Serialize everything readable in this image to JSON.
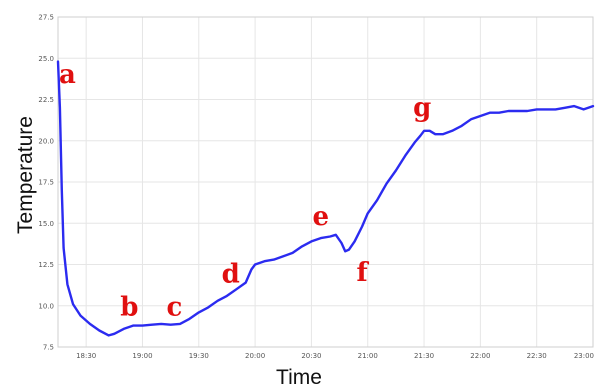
{
  "chart_data": {
    "type": "line",
    "title": "",
    "xlabel": "Time",
    "ylabel": "Temperature",
    "xlim": [
      "18:15",
      "23:00"
    ],
    "ylim": [
      7.5,
      27.5
    ],
    "x_ticks": [
      "18:30",
      "19:00",
      "19:30",
      "20:00",
      "20:30",
      "21:00",
      "21:30",
      "22:00",
      "22:30",
      "23:00"
    ],
    "y_ticks": [
      "7.5",
      "10.0",
      "12.5",
      "15.0",
      "17.5",
      "20.0",
      "22.5",
      "25.0",
      "27.5"
    ],
    "grid": true,
    "series": [
      {
        "color": "#2b2bf0",
        "points": [
          [
            "18:15",
            24.8
          ],
          [
            "18:16",
            22.0
          ],
          [
            "18:17",
            17.0
          ],
          [
            "18:18",
            13.5
          ],
          [
            "18:20",
            11.3
          ],
          [
            "18:23",
            10.1
          ],
          [
            "18:27",
            9.4
          ],
          [
            "18:32",
            8.9
          ],
          [
            "18:37",
            8.5
          ],
          [
            "18:42",
            8.2
          ],
          [
            "18:45",
            8.3
          ],
          [
            "18:50",
            8.6
          ],
          [
            "18:55",
            8.8
          ],
          [
            "19:00",
            8.8
          ],
          [
            "19:05",
            8.85
          ],
          [
            "19:10",
            8.9
          ],
          [
            "19:15",
            8.85
          ],
          [
            "19:20",
            8.9
          ],
          [
            "19:25",
            9.2
          ],
          [
            "19:30",
            9.6
          ],
          [
            "19:35",
            9.9
          ],
          [
            "19:40",
            10.3
          ],
          [
            "19:45",
            10.6
          ],
          [
            "19:50",
            11.0
          ],
          [
            "19:55",
            11.4
          ],
          [
            "19:58",
            12.2
          ],
          [
            "20:00",
            12.5
          ],
          [
            "20:05",
            12.7
          ],
          [
            "20:10",
            12.8
          ],
          [
            "20:15",
            13.0
          ],
          [
            "20:20",
            13.2
          ],
          [
            "20:25",
            13.6
          ],
          [
            "20:30",
            13.9
          ],
          [
            "20:35",
            14.1
          ],
          [
            "20:40",
            14.2
          ],
          [
            "20:43",
            14.3
          ],
          [
            "20:46",
            13.8
          ],
          [
            "20:48",
            13.3
          ],
          [
            "20:50",
            13.4
          ],
          [
            "20:53",
            13.9
          ],
          [
            "20:57",
            14.8
          ],
          [
            "21:00",
            15.6
          ],
          [
            "21:05",
            16.4
          ],
          [
            "21:10",
            17.4
          ],
          [
            "21:15",
            18.2
          ],
          [
            "21:20",
            19.1
          ],
          [
            "21:25",
            19.9
          ],
          [
            "21:28",
            20.3
          ],
          [
            "21:30",
            20.6
          ],
          [
            "21:33",
            20.6
          ],
          [
            "21:36",
            20.4
          ],
          [
            "21:40",
            20.4
          ],
          [
            "21:45",
            20.6
          ],
          [
            "21:50",
            20.9
          ],
          [
            "21:55",
            21.3
          ],
          [
            "22:00",
            21.5
          ],
          [
            "22:05",
            21.7
          ],
          [
            "22:10",
            21.7
          ],
          [
            "22:15",
            21.8
          ],
          [
            "22:20",
            21.8
          ],
          [
            "22:25",
            21.8
          ],
          [
            "22:30",
            21.9
          ],
          [
            "22:35",
            21.9
          ],
          [
            "22:40",
            21.9
          ],
          [
            "22:45",
            22.0
          ],
          [
            "22:50",
            22.1
          ],
          [
            "22:55",
            21.9
          ],
          [
            "23:00",
            22.1
          ]
        ]
      }
    ],
    "annotations": [
      {
        "text": "a",
        "x": "18:20",
        "y": 23.5
      },
      {
        "text": "b",
        "x": "18:53",
        "y": 9.4
      },
      {
        "text": "c",
        "x": "19:17",
        "y": 9.4
      },
      {
        "text": "d",
        "x": "19:47",
        "y": 11.4
      },
      {
        "text": "e",
        "x": "20:35",
        "y": 14.9
      },
      {
        "text": "f",
        "x": "20:57",
        "y": 11.5
      },
      {
        "text": "g",
        "x": "21:29",
        "y": 21.5
      }
    ]
  }
}
